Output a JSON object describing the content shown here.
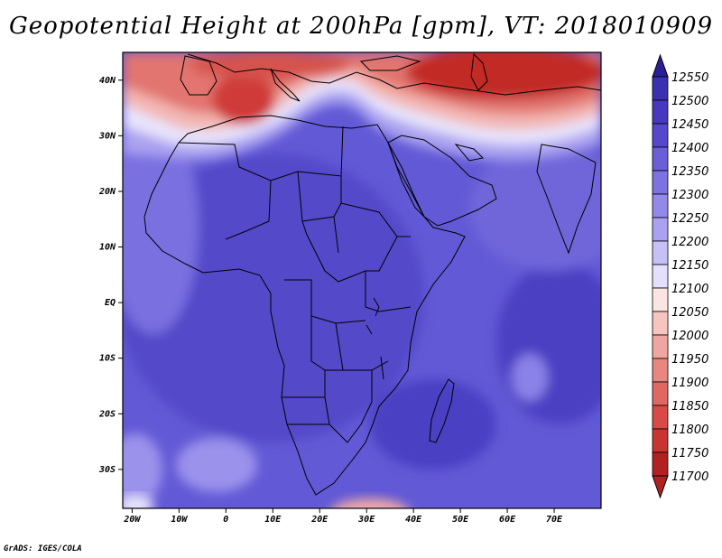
{
  "title": "Geopotential Height at 200hPa [gpm], VT: 2018010909",
  "footer": "GrADS: IGES/COLA",
  "lon_labels": [
    "20W",
    "10W",
    "0",
    "10E",
    "20E",
    "30E",
    "40E",
    "50E",
    "60E",
    "70E"
  ],
  "lat_labels": [
    "40N",
    "30N",
    "20N",
    "10N",
    "EQ",
    "10S",
    "20S",
    "30S"
  ],
  "colorbar": {
    "levels": [
      "12550",
      "12500",
      "12450",
      "12400",
      "12350",
      "12300",
      "12250",
      "12200",
      "12150",
      "12100",
      "12050",
      "12000",
      "11950",
      "11900",
      "11850",
      "11800",
      "11750",
      "11700"
    ],
    "colors": [
      "#2a1f96",
      "#3a30b0",
      "#4738c0",
      "#5548cc",
      "#6a5fd8",
      "#7d73e0",
      "#9389e8",
      "#aaa2f0",
      "#c6c0f6",
      "#e4e0fb",
      "#fbe5e3",
      "#f6c5c0",
      "#f0a6a0",
      "#e88680",
      "#e06862",
      "#d84a46",
      "#c83430",
      "#b02222"
    ]
  },
  "map": {
    "lon_range": [
      -22,
      80
    ],
    "lat_range": [
      -37,
      45
    ],
    "contour_colors": {
      "mid": "#5d53d3",
      "deep": "#4a40c4",
      "light": "#8a80e6",
      "pale": "#b8b2f2",
      "white": "#fbfbff",
      "red1": "#f1a9a6",
      "red2": "#e16a67",
      "red3": "#c9302d"
    }
  }
}
